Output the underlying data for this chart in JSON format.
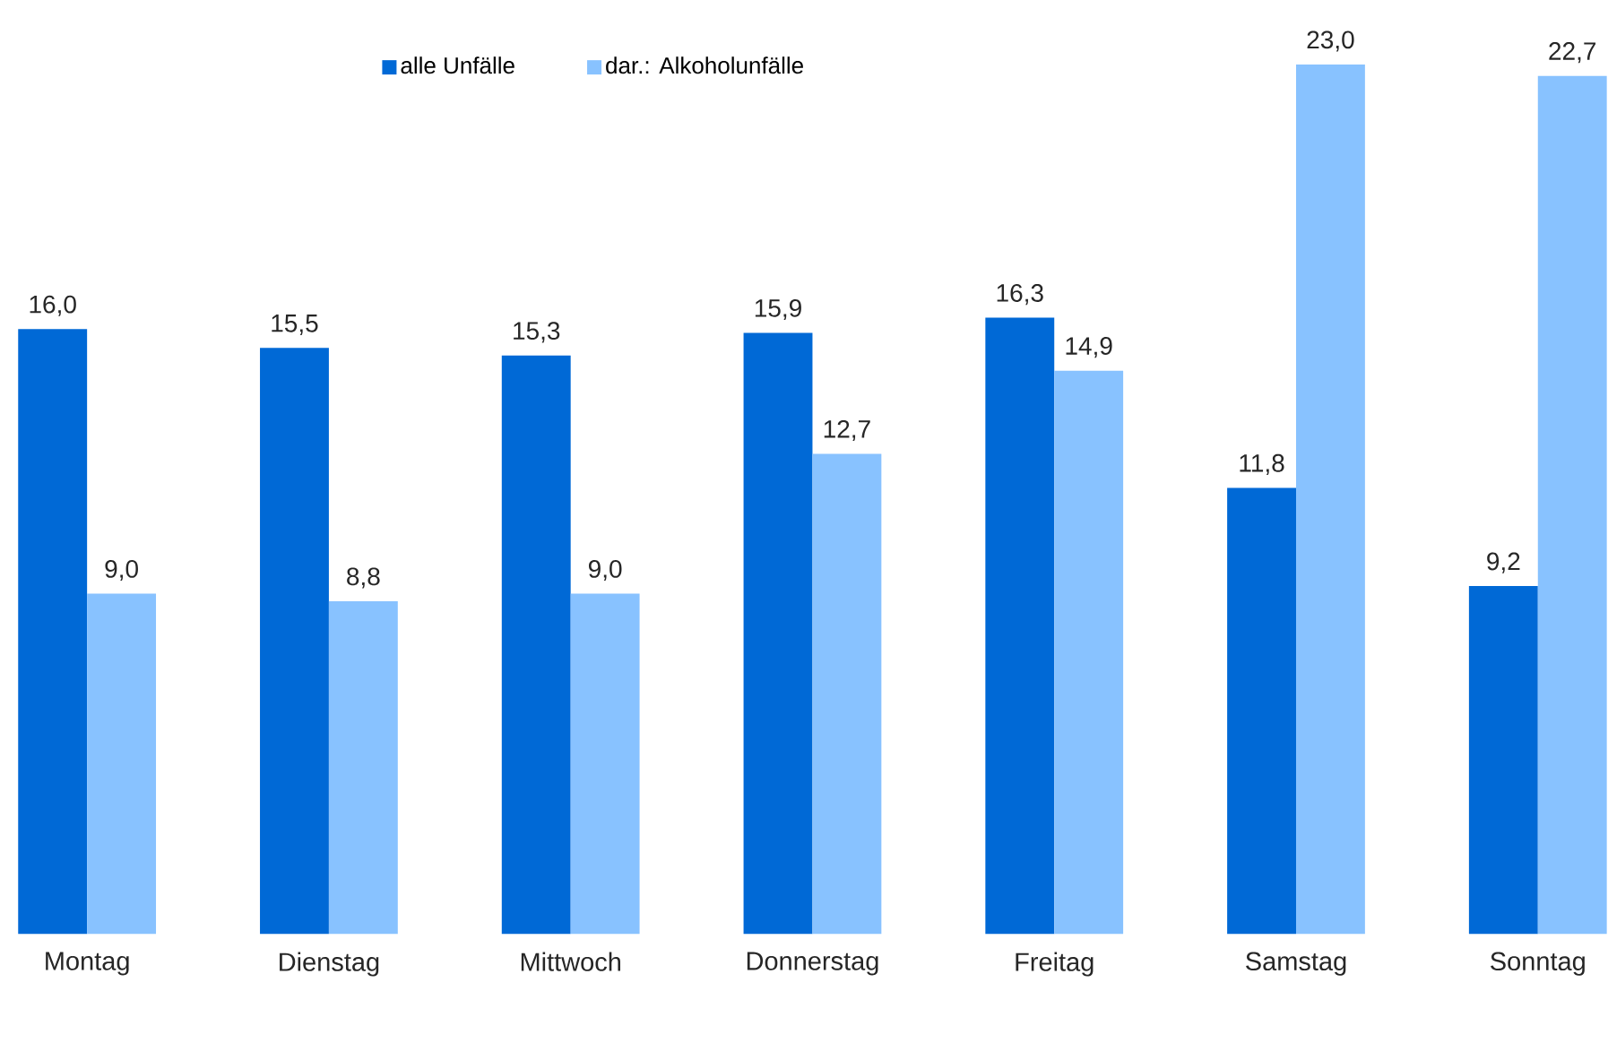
{
  "chart_data": {
    "type": "bar",
    "categories": [
      "Montag",
      "Dienstag",
      "Mittwoch",
      "Donnerstag",
      "Freitag",
      "Samstag",
      "Sonntag"
    ],
    "series": [
      {
        "name": "alle Unfälle",
        "color": "#0069d6",
        "values": [
          16.0,
          15.5,
          15.3,
          15.9,
          16.3,
          11.8,
          9.2
        ],
        "value_labels": [
          "16,0",
          "15,5",
          "15,3",
          "15,9",
          "16,3",
          "11,8",
          "9,2"
        ]
      },
      {
        "name": "dar.: Alkoholunfälle",
        "color": "#88c2ff",
        "values": [
          9.0,
          8.8,
          9.0,
          12.7,
          14.9,
          23.0,
          22.7
        ],
        "value_labels": [
          "9,0",
          "8,8",
          "9,0",
          "12,7",
          "14,9",
          "23,0",
          "22,7"
        ]
      }
    ],
    "legend": "top"
  }
}
